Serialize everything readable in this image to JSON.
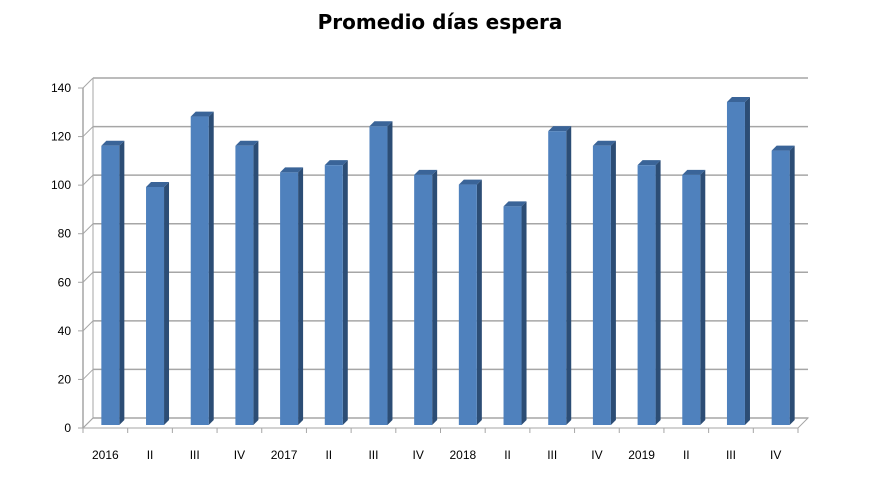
{
  "chart_data": {
    "type": "bar",
    "title": "Promedio días espera",
    "xlabel": "",
    "ylabel": "",
    "categories": [
      "2016",
      "II",
      "III",
      "IV",
      "2017",
      "II",
      "III",
      "IV",
      "2018",
      "II",
      "III",
      "IV",
      "2019",
      "II",
      "III",
      "IV"
    ],
    "values": [
      115,
      98,
      127,
      115,
      104,
      107,
      123,
      103,
      99,
      90,
      121,
      115,
      107,
      103,
      133,
      113
    ],
    "ylim": [
      0,
      140
    ],
    "yticks": [
      "0",
      "20",
      "40",
      "60",
      "80",
      "100",
      "120",
      "140"
    ],
    "grid": true,
    "legend": "none",
    "colors": {
      "bar_front": "#4F81BD",
      "bar_side": "#2C4D75",
      "bar_top": "#3A6498",
      "grid": "#A6A6A6"
    }
  }
}
